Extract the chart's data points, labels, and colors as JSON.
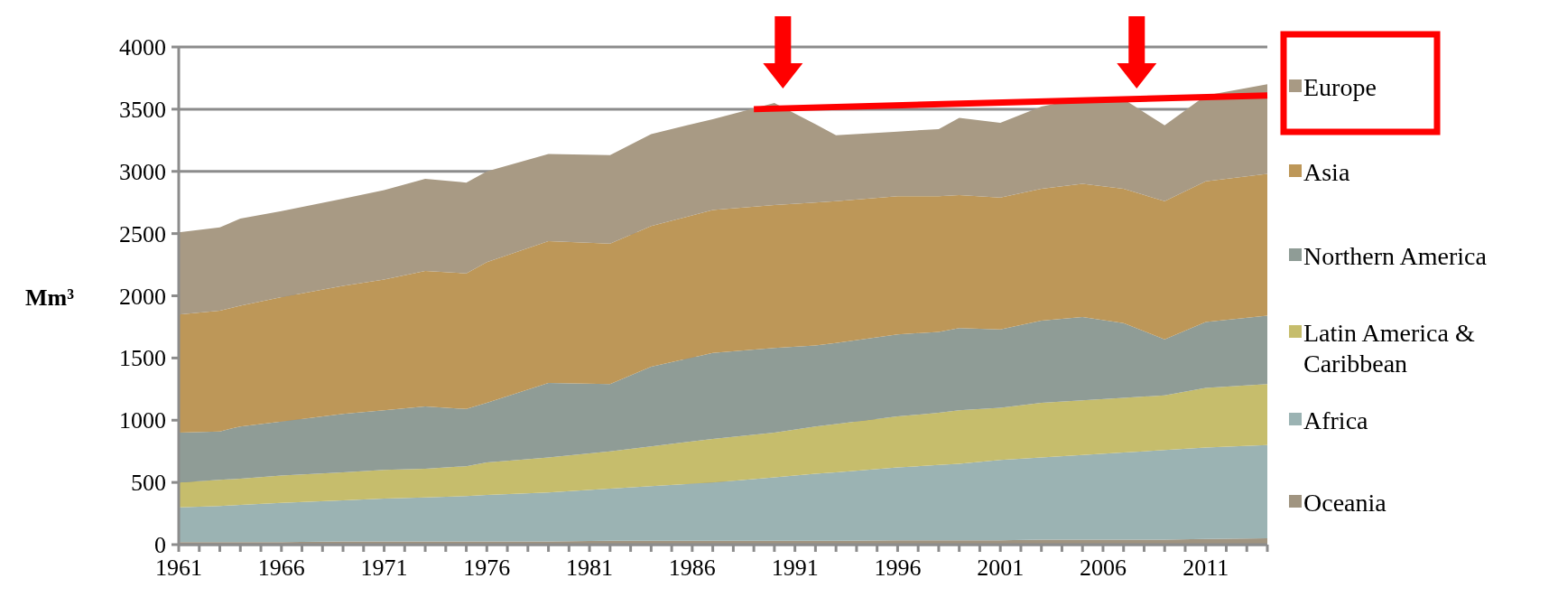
{
  "chart_data": {
    "type": "area",
    "stacked": true,
    "ylabel": "Mm³",
    "x": [
      1961,
      1963,
      1964,
      1966,
      1969,
      1971,
      1973,
      1975,
      1976,
      1979,
      1982,
      1984,
      1987,
      1990,
      1992,
      1993,
      1996,
      1998,
      1999,
      2001,
      2003,
      2005,
      2007,
      2009,
      2011,
      2014
    ],
    "series": [
      {
        "name": "Oceania",
        "color": "#a09480",
        "values": [
          20,
          20,
          20,
          20,
          25,
          25,
          25,
          25,
          25,
          25,
          30,
          30,
          30,
          30,
          30,
          30,
          35,
          35,
          35,
          35,
          40,
          40,
          40,
          40,
          45,
          50
        ]
      },
      {
        "name": "Africa",
        "color": "#9bb3b3",
        "values": [
          280,
          290,
          300,
          315,
          330,
          345,
          355,
          365,
          375,
          395,
          420,
          440,
          470,
          510,
          540,
          550,
          585,
          605,
          615,
          645,
          660,
          680,
          700,
          720,
          735,
          750
        ]
      },
      {
        "name": "Latin America & Caribbean",
        "color": "#c6bd6c",
        "values": [
          200,
          210,
          210,
          220,
          225,
          230,
          230,
          240,
          260,
          280,
          300,
          320,
          350,
          360,
          380,
          390,
          410,
          420,
          430,
          420,
          440,
          440,
          440,
          440,
          480,
          490
        ]
      },
      {
        "name": "Northern America",
        "color": "#8f9c96",
        "values": [
          400,
          390,
          420,
          435,
          470,
          480,
          500,
          460,
          480,
          600,
          540,
          640,
          690,
          680,
          650,
          650,
          660,
          650,
          660,
          630,
          660,
          670,
          600,
          450,
          530,
          550
        ]
      },
      {
        "name": "Asia",
        "color": "#bd9758",
        "values": [
          950,
          970,
          970,
          1000,
          1030,
          1050,
          1090,
          1090,
          1130,
          1140,
          1130,
          1130,
          1150,
          1150,
          1150,
          1140,
          1110,
          1090,
          1070,
          1060,
          1060,
          1070,
          1080,
          1110,
          1130,
          1140
        ]
      },
      {
        "name": "Europe",
        "color": "#a89a84",
        "values": [
          660,
          670,
          700,
          690,
          700,
          720,
          740,
          730,
          730,
          700,
          710,
          740,
          730,
          820,
          630,
          530,
          520,
          540,
          620,
          600,
          660,
          690,
          720,
          610,
          690,
          720
        ]
      },
      {
        "type": "line",
        "color": "#ff0000",
        "x": [
          1989,
          2014
        ],
        "values": [
          3500,
          3610
        ]
      }
    ],
    "xlim": [
      1961,
      2014
    ],
    "xticks": [
      1961,
      {
        "value": 1962,
        "label": null
      },
      {
        "value": 1963,
        "label": null
      },
      {
        "value": 1964,
        "label": null
      },
      {
        "value": 1965,
        "label": null
      },
      1966,
      {
        "value": 1967,
        "label": null
      },
      {
        "value": 1968,
        "label": null
      },
      {
        "value": 1969,
        "label": null
      },
      {
        "value": 1970,
        "label": null
      },
      1971,
      {
        "value": 1972,
        "label": null
      },
      {
        "value": 1973,
        "label": null
      },
      {
        "value": 1974,
        "label": null
      },
      {
        "value": 1975,
        "label": null
      },
      1976,
      {
        "value": 1977,
        "label": null
      },
      {
        "value": 1978,
        "label": null
      },
      {
        "value": 1979,
        "label": null
      },
      {
        "value": 1980,
        "label": null
      },
      1981,
      {
        "value": 1982,
        "label": null
      },
      {
        "value": 1983,
        "label": null
      },
      {
        "value": 1984,
        "label": null
      },
      {
        "value": 1985,
        "label": null
      },
      1986,
      {
        "value": 1987,
        "label": null
      },
      {
        "value": 1988,
        "label": null
      },
      {
        "value": 1989,
        "label": null
      },
      {
        "value": 1990,
        "label": null
      },
      1991,
      {
        "value": 1992,
        "label": null
      },
      {
        "value": 1993,
        "label": null
      },
      {
        "value": 1994,
        "label": null
      },
      {
        "value": 1995,
        "label": null
      },
      1996,
      {
        "value": 1997,
        "label": null
      },
      {
        "value": 1998,
        "label": null
      },
      {
        "value": 1999,
        "label": null
      },
      {
        "value": 2000,
        "label": null
      },
      2001,
      {
        "value": 2002,
        "label": null
      },
      {
        "value": 2003,
        "label": null
      },
      {
        "value": 2004,
        "label": null
      },
      {
        "value": 2005,
        "label": null
      },
      2006,
      {
        "value": 2007,
        "label": null
      },
      {
        "value": 2008,
        "label": null
      },
      {
        "value": 2009,
        "label": null
      },
      {
        "value": 2010,
        "label": null
      },
      2011,
      {
        "value": 2012,
        "label": null
      },
      {
        "value": 2013,
        "label": null
      },
      {
        "value": 2014,
        "label": null
      }
    ],
    "ylim": [
      0,
      4000
    ],
    "yticks": [
      0,
      500,
      1000,
      1500,
      2000,
      2500,
      3000,
      3500,
      4000
    ],
    "grid": "y",
    "legend": "right"
  }
}
